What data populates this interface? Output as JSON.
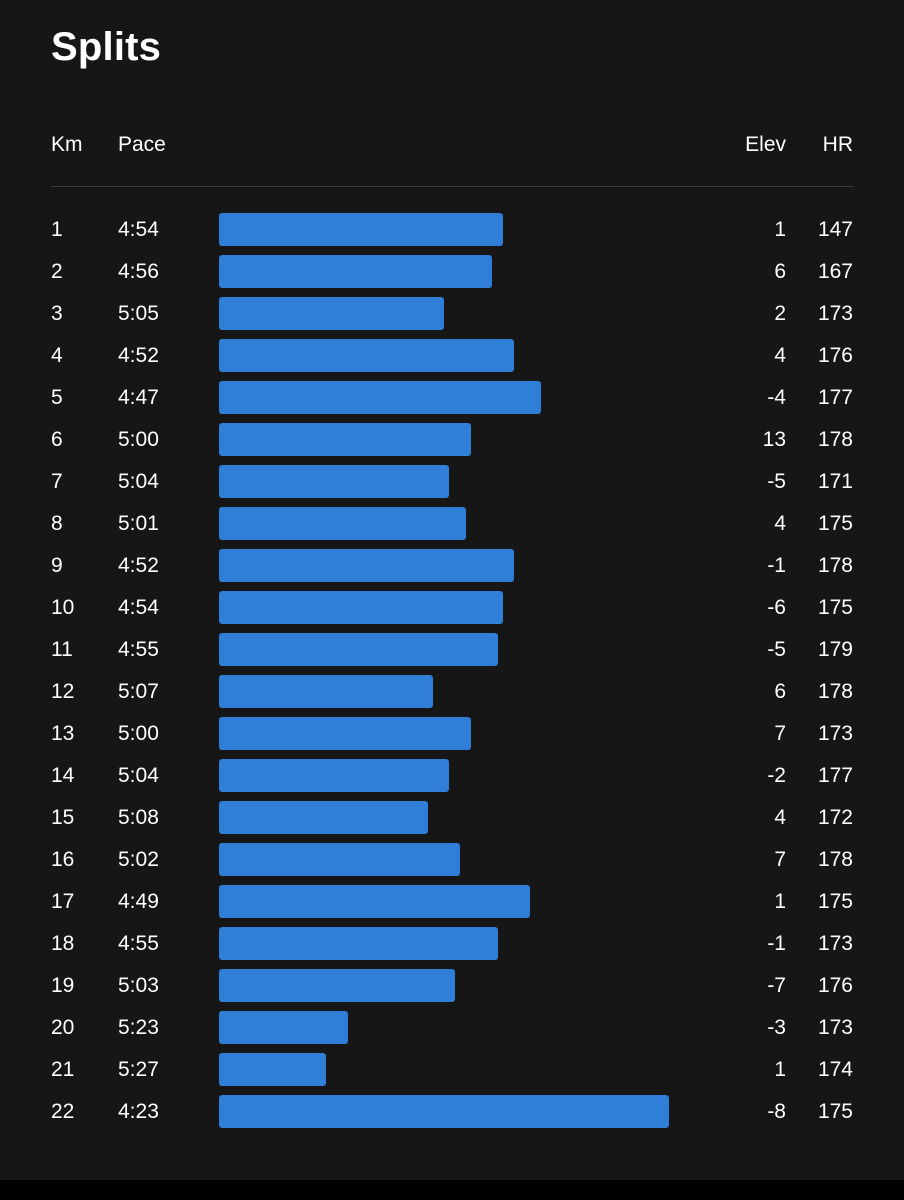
{
  "title": "Splits",
  "colors": {
    "background": "#161616",
    "bar": "#2f7ed8",
    "divider": "#3b3b3b",
    "text": "#ffffff"
  },
  "columns": {
    "km": "Km",
    "pace": "Pace",
    "elev": "Elev",
    "hr": "HR"
  },
  "splits": [
    {
      "km": "1",
      "pace": "4:54",
      "elev": "1",
      "hr": "147"
    },
    {
      "km": "2",
      "pace": "4:56",
      "elev": "6",
      "hr": "167"
    },
    {
      "km": "3",
      "pace": "5:05",
      "elev": "2",
      "hr": "173"
    },
    {
      "km": "4",
      "pace": "4:52",
      "elev": "4",
      "hr": "176"
    },
    {
      "km": "5",
      "pace": "4:47",
      "elev": "-4",
      "hr": "177"
    },
    {
      "km": "6",
      "pace": "5:00",
      "elev": "13",
      "hr": "178"
    },
    {
      "km": "7",
      "pace": "5:04",
      "elev": "-5",
      "hr": "171"
    },
    {
      "km": "8",
      "pace": "5:01",
      "elev": "4",
      "hr": "175"
    },
    {
      "km": "9",
      "pace": "4:52",
      "elev": "-1",
      "hr": "178"
    },
    {
      "km": "10",
      "pace": "4:54",
      "elev": "-6",
      "hr": "175"
    },
    {
      "km": "11",
      "pace": "4:55",
      "elev": "-5",
      "hr": "179"
    },
    {
      "km": "12",
      "pace": "5:07",
      "elev": "6",
      "hr": "178"
    },
    {
      "km": "13",
      "pace": "5:00",
      "elev": "7",
      "hr": "173"
    },
    {
      "km": "14",
      "pace": "5:04",
      "elev": "-2",
      "hr": "177"
    },
    {
      "km": "15",
      "pace": "5:08",
      "elev": "4",
      "hr": "172"
    },
    {
      "km": "16",
      "pace": "5:02",
      "elev": "7",
      "hr": "178"
    },
    {
      "km": "17",
      "pace": "4:49",
      "elev": "1",
      "hr": "175"
    },
    {
      "km": "18",
      "pace": "4:55",
      "elev": "-1",
      "hr": "173"
    },
    {
      "km": "19",
      "pace": "5:03",
      "elev": "-7",
      "hr": "176"
    },
    {
      "km": "20",
      "pace": "5:23",
      "elev": "-3",
      "hr": "173"
    },
    {
      "km": "21",
      "pace": "5:27",
      "elev": "1",
      "hr": "174"
    },
    {
      "km": "22",
      "pace": "4:23",
      "elev": "-8",
      "hr": "175"
    }
  ]
}
